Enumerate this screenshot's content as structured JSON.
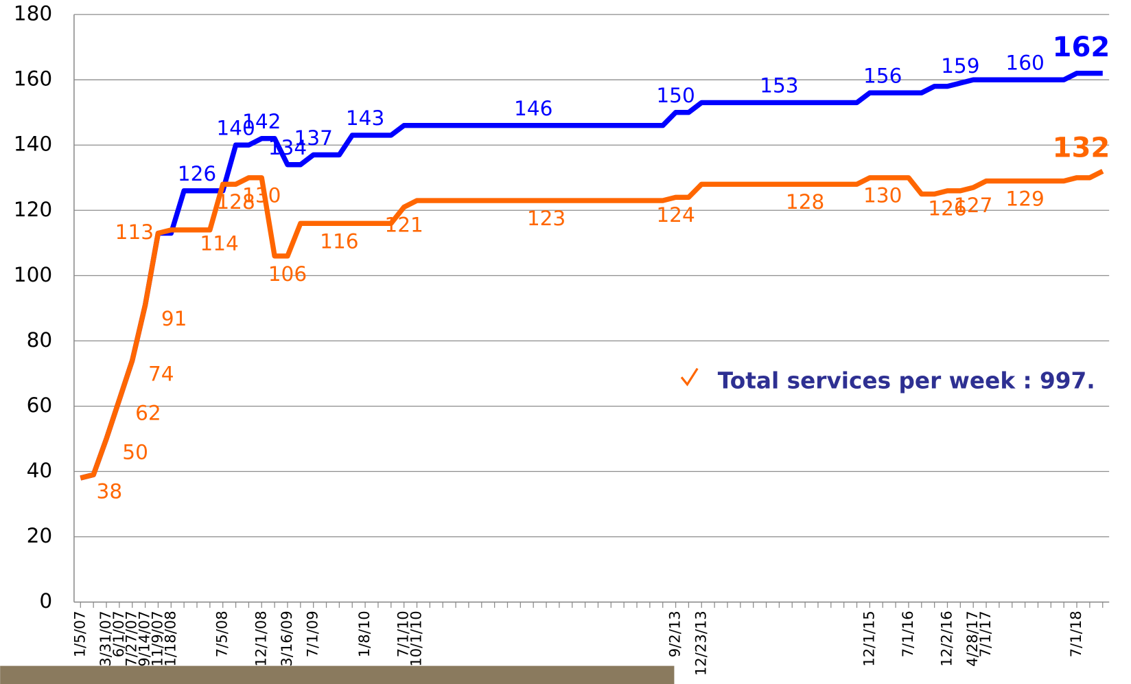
{
  "chart_data": {
    "type": "line",
    "categories": [
      "1/5/07",
      null,
      "3/31/07",
      "6/1/07",
      "7/27/07",
      "9/14/07",
      "11/9/07",
      "1/18/08",
      null,
      null,
      null,
      "7/5/08",
      null,
      null,
      "12/1/08",
      null,
      "3/16/09",
      null,
      "7/1/09",
      null,
      null,
      null,
      "1/8/10",
      null,
      null,
      "7/1/10",
      "10/1/10",
      null,
      null,
      null,
      null,
      null,
      null,
      null,
      null,
      null,
      null,
      null,
      null,
      null,
      null,
      null,
      null,
      null,
      null,
      null,
      "9/2/13",
      null,
      "12/23/13",
      null,
      null,
      null,
      null,
      null,
      null,
      null,
      null,
      null,
      null,
      null,
      null,
      "12/1/15",
      null,
      null,
      "7/1/16",
      null,
      null,
      "12/2/16",
      null,
      "4/28/17",
      "7/1/17",
      null,
      null,
      null,
      null,
      null,
      null,
      "7/1/18",
      null,
      null
    ],
    "series": [
      {
        "color": "#0000ff",
        "values": [
          38,
          39,
          50,
          62,
          74,
          91,
          113,
          113,
          126,
          126,
          126,
          126,
          140,
          140,
          142,
          142,
          134,
          134,
          137,
          137,
          137,
          143,
          143,
          143,
          143,
          146,
          146,
          146,
          146,
          146,
          146,
          146,
          146,
          146,
          146,
          146,
          146,
          146,
          146,
          146,
          146,
          146,
          146,
          146,
          146,
          146,
          150,
          150,
          153,
          153,
          153,
          153,
          153,
          153,
          153,
          153,
          153,
          153,
          153,
          153,
          153,
          156,
          156,
          156,
          156,
          156,
          158,
          158,
          159,
          160,
          160,
          160,
          160,
          160,
          160,
          160,
          160,
          162,
          162,
          162
        ],
        "value_labels": [
          null,
          null,
          null,
          null,
          null,
          null,
          null,
          null,
          null,
          "126",
          null,
          null,
          "140",
          null,
          "142",
          null,
          "134",
          null,
          "137",
          null,
          null,
          null,
          "143",
          null,
          null,
          null,
          null,
          null,
          null,
          null,
          null,
          null,
          null,
          null,
          null,
          "146",
          null,
          null,
          null,
          null,
          null,
          null,
          null,
          null,
          null,
          null,
          "150",
          null,
          null,
          null,
          null,
          null,
          null,
          null,
          "153",
          null,
          null,
          null,
          null,
          null,
          null,
          null,
          "156",
          null,
          null,
          null,
          null,
          null,
          "159",
          null,
          null,
          null,
          null,
          "160",
          null,
          null,
          null,
          null,
          null,
          "162"
        ]
      },
      {
        "color": "#ff6600",
        "values": [
          38,
          39,
          50,
          62,
          74,
          91,
          113,
          114,
          114,
          114,
          114,
          128,
          128,
          130,
          130,
          106,
          106,
          116,
          116,
          116,
          116,
          116,
          116,
          116,
          116,
          121,
          123,
          123,
          123,
          123,
          123,
          123,
          123,
          123,
          123,
          123,
          123,
          123,
          123,
          123,
          123,
          123,
          123,
          123,
          123,
          123,
          124,
          124,
          128,
          128,
          128,
          128,
          128,
          128,
          128,
          128,
          128,
          128,
          128,
          128,
          128,
          130,
          130,
          130,
          130,
          125,
          125,
          126,
          126,
          127,
          129,
          129,
          129,
          129,
          129,
          129,
          129,
          130,
          130,
          132
        ],
        "value_labels": [
          "38",
          null,
          "50",
          "62",
          "74",
          "91",
          "113",
          null,
          "114",
          null,
          null,
          null,
          "128",
          null,
          "130",
          null,
          "106",
          null,
          null,
          null,
          "116",
          null,
          null,
          null,
          null,
          "121",
          null,
          null,
          null,
          null,
          null,
          null,
          null,
          null,
          null,
          null,
          "123",
          null,
          null,
          null,
          null,
          null,
          null,
          null,
          null,
          null,
          "124",
          null,
          null,
          null,
          null,
          null,
          null,
          null,
          null,
          null,
          "128",
          null,
          null,
          null,
          null,
          null,
          "130",
          null,
          null,
          null,
          null,
          "126",
          null,
          "127",
          null,
          null,
          null,
          "129",
          null,
          null,
          null,
          null,
          null,
          "132"
        ]
      }
    ],
    "ylim": [
      0,
      180
    ],
    "yticks": [
      0,
      20,
      40,
      60,
      80,
      100,
      120,
      140,
      160,
      180
    ],
    "grid": true,
    "annotation": "Total services per week : 997."
  }
}
